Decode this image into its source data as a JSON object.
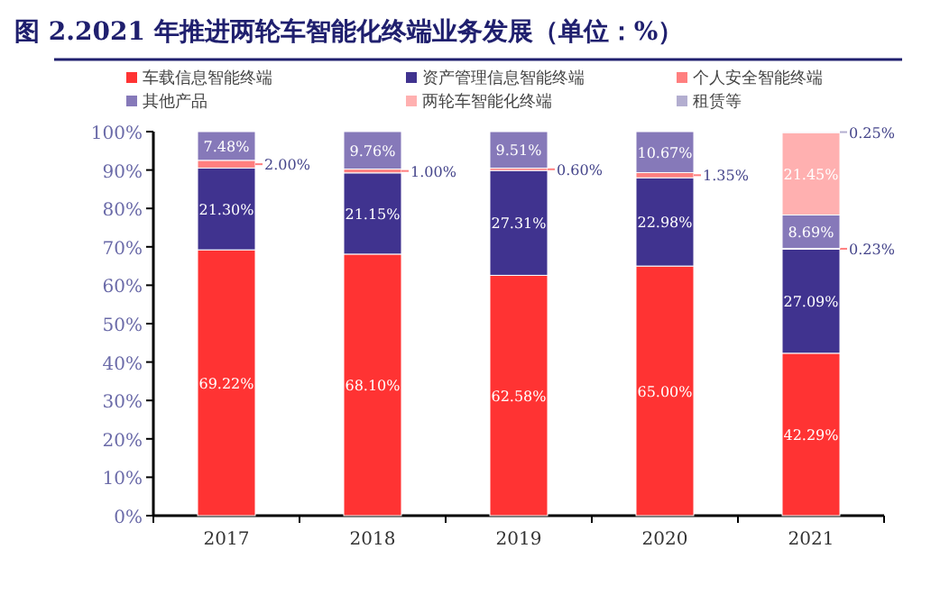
{
  "chart_data": {
    "type": "bar",
    "title": "图 2.2021 年推进两轮车智能化终端业务发展（单位：%）",
    "categories": [
      "2017",
      "2018",
      "2019",
      "2020",
      "2021"
    ],
    "stacked": true,
    "legend": "top",
    "grid": false,
    "ylim": [
      0,
      100
    ],
    "yticks": [
      {
        "value": 0,
        "label": "0%"
      },
      {
        "value": 10,
        "label": "10%"
      },
      {
        "value": 20,
        "label": "20%"
      },
      {
        "value": 30,
        "label": "30%"
      },
      {
        "value": 40,
        "label": "40%"
      },
      {
        "value": 50,
        "label": "50%"
      },
      {
        "value": 60,
        "label": "60%"
      },
      {
        "value": 70,
        "label": "70%"
      },
      {
        "value": 80,
        "label": "80%"
      },
      {
        "value": 90,
        "label": "90%"
      },
      {
        "value": 100,
        "label": "100%"
      }
    ],
    "series": [
      {
        "name": "车载信息智能终端",
        "color": "#ff3333",
        "values": [
          69.22,
          68.1,
          62.58,
          65.0,
          42.29
        ],
        "value_labels": [
          "69.22%",
          "68.10%",
          "62.58%",
          "65.00%",
          "42.29%"
        ]
      },
      {
        "name": "资产管理信息智能终端",
        "color": "#40338f",
        "values": [
          21.3,
          21.15,
          27.31,
          22.98,
          27.09
        ],
        "value_labels": [
          "21.30%",
          "21.15%",
          "27.31%",
          "22.98%",
          "27.09%"
        ]
      },
      {
        "name": "个人安全智能终端",
        "color": "#ff7f7f",
        "values": [
          2.0,
          1.0,
          0.6,
          1.35,
          0.23
        ],
        "value_labels": [
          "2.00%",
          "1.00%",
          "0.60%",
          "1.35%",
          "0.23%"
        ]
      },
      {
        "name": "其他产品",
        "color": "#8679b9",
        "values": [
          7.48,
          9.76,
          9.51,
          10.67,
          8.69
        ],
        "value_labels": [
          "7.48%",
          "9.76%",
          "9.51%",
          "10.67%",
          "8.69%"
        ]
      },
      {
        "name": "两轮车智能化终端",
        "color": "#ffb0b0",
        "values": [
          null,
          null,
          null,
          null,
          21.45
        ],
        "value_labels": [
          null,
          null,
          null,
          null,
          "21.45%"
        ]
      },
      {
        "name": "租赁等",
        "color": "#b3aed0",
        "values": [
          null,
          null,
          null,
          null,
          0.25
        ],
        "value_labels": [
          null,
          null,
          null,
          null,
          "0.25%"
        ]
      }
    ]
  }
}
